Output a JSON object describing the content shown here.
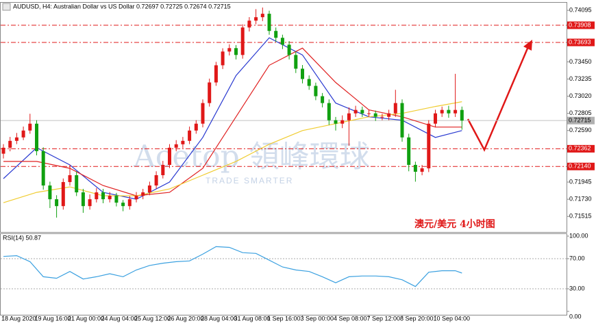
{
  "chart_data": {
    "type": "candlestick",
    "title": "AUDUSD, H4:  Australian Dollar vs US Dollar  0.72697 0.72725 0.72674 0.72715",
    "categories": [
      "18 Aug 2020",
      null,
      null,
      null,
      null,
      "19 Aug 16:00",
      null,
      null,
      null,
      null,
      "21 Aug 00:00",
      null,
      null,
      null,
      null,
      "24 Aug 04:00",
      null,
      null,
      null,
      null,
      "25 Aug 12:00",
      null,
      null,
      null,
      null,
      "26 Aug 20:00",
      null,
      null,
      null,
      null,
      "28 Aug 04:00",
      null,
      null,
      null,
      null,
      "31 Aug 08:00",
      null,
      null,
      null,
      null,
      "1 Sep 16:00",
      null,
      null,
      null,
      null,
      "3 Sep 00:00",
      null,
      null,
      null,
      null,
      "4 Sep 08:00",
      null,
      null,
      null,
      null,
      "7 Sep 12:00",
      null,
      null,
      null,
      null,
      "8 Sep 20:00",
      null,
      null,
      null,
      null,
      "10 Sep 04:00",
      null,
      null,
      null,
      null
    ],
    "open": [
      0.723,
      0.72375,
      0.72461,
      0.72504,
      0.7259,
      0.72676,
      0.72332,
      0.71902,
      0.7173,
      0.71644,
      0.71945,
      0.72031,
      0.71816,
      0.71644,
      0.7173,
      0.71816,
      0.7173,
      0.71773,
      0.71687,
      0.71644,
      0.7173,
      0.71773,
      0.71816,
      0.71902,
      0.72031,
      0.7216,
      0.72375,
      0.72418,
      0.72461,
      0.7259,
      0.72676,
      0.72934,
      0.73192,
      0.73407,
      0.73579,
      0.73622,
      0.73536,
      0.7388,
      0.73966,
      0.74009,
      0.74052,
      0.73837,
      0.73751,
      0.73665,
      0.73536,
      0.73364,
      0.73235,
      0.73149,
      0.7302,
      0.72934,
      0.72719,
      0.72676,
      0.72719,
      0.72805,
      0.72848,
      0.72805,
      0.72805,
      0.72762,
      0.72762,
      0.72805,
      0.72934,
      0.72504,
      0.7216,
      0.72074,
      0.72117,
      0.72676,
      0.72805,
      0.72848,
      0.72805,
      0.72848
    ],
    "high": [
      0.7242,
      0.7251,
      0.7256,
      0.7264,
      0.728,
      0.7272,
      0.7238,
      0.7195,
      0.7178,
      0.7199,
      0.7216,
      0.7208,
      0.7186,
      0.7179,
      0.7187,
      0.7186,
      0.7182,
      0.7181,
      0.7172,
      0.7177,
      0.7182,
      0.7186,
      0.7195,
      0.7208,
      0.7221,
      0.7242,
      0.7247,
      0.7251,
      0.7264,
      0.7272,
      0.7298,
      0.7324,
      0.7345,
      0.7362,
      0.7367,
      0.7366,
      0.7392,
      0.7401,
      0.7411,
      0.7413,
      0.7409,
      0.7388,
      0.7379,
      0.7371,
      0.7358,
      0.7341,
      0.7328,
      0.7319,
      0.7306,
      0.7298,
      0.7276,
      0.7278,
      0.7288,
      0.729,
      0.7289,
      0.7285,
      0.7284,
      0.728,
      0.7285,
      0.731,
      0.7298,
      0.7255,
      0.722,
      0.7216,
      0.7272,
      0.7285,
      0.7289,
      0.729,
      0.733,
      0.7289
    ],
    "low": [
      0.7224,
      0.7233,
      0.7242,
      0.7247,
      0.7255,
      0.7228,
      0.7185,
      0.7162,
      0.715,
      0.716,
      0.719,
      0.7177,
      0.7156,
      0.716,
      0.7169,
      0.7168,
      0.7169,
      0.7164,
      0.7158,
      0.716,
      0.7169,
      0.7173,
      0.7178,
      0.7186,
      0.7199,
      0.7212,
      0.7233,
      0.7237,
      0.7242,
      0.7255,
      0.7263,
      0.7289,
      0.7315,
      0.7336,
      0.7353,
      0.7348,
      0.7349,
      0.7383,
      0.7392,
      0.7396,
      0.7379,
      0.737,
      0.7361,
      0.7348,
      0.7331,
      0.7318,
      0.731,
      0.7297,
      0.7288,
      0.7266,
      0.7259,
      0.7262,
      0.724,
      0.7276,
      0.7276,
      0.7276,
      0.7271,
      0.7272,
      0.7272,
      0.7276,
      0.7245,
      0.7208,
      0.7195,
      0.7203,
      0.7207,
      0.7263,
      0.7276,
      0.7275,
      0.7276,
      0.726
    ],
    "close": [
      0.72375,
      0.72461,
      0.72504,
      0.7259,
      0.72676,
      0.72332,
      0.71902,
      0.7173,
      0.71644,
      0.71945,
      0.72031,
      0.71816,
      0.71644,
      0.7173,
      0.71816,
      0.7173,
      0.71773,
      0.71687,
      0.71644,
      0.7173,
      0.71773,
      0.71816,
      0.71902,
      0.72031,
      0.7216,
      0.72375,
      0.72418,
      0.72461,
      0.7259,
      0.72676,
      0.72934,
      0.73192,
      0.73407,
      0.73579,
      0.73622,
      0.73536,
      0.7388,
      0.73966,
      0.74009,
      0.74052,
      0.73837,
      0.73751,
      0.73665,
      0.73536,
      0.73364,
      0.73235,
      0.73149,
      0.7302,
      0.72934,
      0.72719,
      0.72676,
      0.72719,
      0.72805,
      0.72848,
      0.72805,
      0.72805,
      0.72762,
      0.72762,
      0.72805,
      0.72934,
      0.72504,
      0.7216,
      0.72074,
      0.72117,
      0.72676,
      0.72805,
      0.72848,
      0.72805,
      0.72848,
      0.72715
    ],
    "up_color": "#e01818",
    "down_color": "#10a010",
    "ylim": [
      0.7132,
      0.7419
    ],
    "yticks": [
      0.74095,
      {
        "value": 0.7345,
        "label": "0.73450"
      },
      0.73235,
      {
        "value": 0.7302,
        "label": "0.73020"
      },
      0.72805,
      {
        "value": 0.7259,
        "label": "0.72590"
      },
      0.71945,
      {
        "value": 0.7173,
        "label": "0.71730"
      },
      0.71515
    ],
    "levels": [
      {
        "value": 0.73908,
        "label": "0.73908"
      },
      0.73693,
      0.72362,
      {
        "value": 0.7214,
        "label": "0.72140"
      }
    ],
    "level_color": "#e01818",
    "current_price": 0.72715,
    "moving_averages": {
      "x": [
        0,
        5,
        10,
        15,
        20,
        25,
        30,
        35,
        40,
        45,
        50,
        55,
        60,
        65,
        69
      ],
      "series": [
        {
          "color": "#2838d0",
          "values": [
            0.71988,
            0.72375,
            0.7216,
            0.71816,
            0.7173,
            0.71945,
            0.72504,
            0.73278,
            0.73751,
            0.73536,
            0.72934,
            0.72762,
            0.72719,
            0.72504,
            0.7259
          ]
        },
        {
          "color": "#e02020",
          "values": [
            0.72203,
            0.72203,
            0.72117,
            0.71902,
            0.71773,
            0.71816,
            0.72117,
            0.72762,
            0.73407,
            0.73622,
            0.73192,
            0.72848,
            0.72762,
            0.72633,
            0.72633
          ]
        },
        {
          "color": "#f0cc30",
          "values": [
            0.71687,
            0.71816,
            0.71885,
            0.71773,
            0.71773,
            0.71859,
            0.72031,
            0.72203,
            0.72418,
            0.7259,
            0.72676,
            0.72762,
            0.72805,
            0.72891,
            0.72951
          ]
        }
      ]
    },
    "annotation": "澳元/美元   4小时图",
    "watermark": "Acetop 領峰環球",
    "watermark_sub": "TRADE SMARTER",
    "rsi": {
      "type": "line",
      "label": "RSI(14) 50.87",
      "color": "#3aa0e0",
      "x": [
        0,
        2,
        4,
        6,
        8,
        10,
        12,
        14,
        16,
        18,
        20,
        22,
        24,
        26,
        28,
        30,
        32,
        34,
        36,
        38,
        40,
        42,
        44,
        46,
        48,
        50,
        52,
        54,
        56,
        58,
        60,
        62,
        64,
        66,
        68,
        69
      ],
      "values": [
        73,
        74,
        66,
        46,
        44,
        53,
        43,
        46,
        50,
        46,
        55,
        61,
        64,
        66,
        67,
        76,
        86,
        85,
        78,
        77,
        68,
        59,
        55,
        53,
        46,
        38,
        46,
        47,
        47,
        46,
        42,
        33,
        52,
        54,
        54,
        50.87
      ],
      "ylim": [
        0,
        100
      ],
      "yticks": [
        {
          "value": 100,
          "label": "100.00"
        },
        {
          "value": 70,
          "label": "70.00"
        },
        {
          "value": 30,
          "label": "30.00"
        },
        {
          "value": 0,
          "label": "0.00"
        }
      ]
    }
  }
}
